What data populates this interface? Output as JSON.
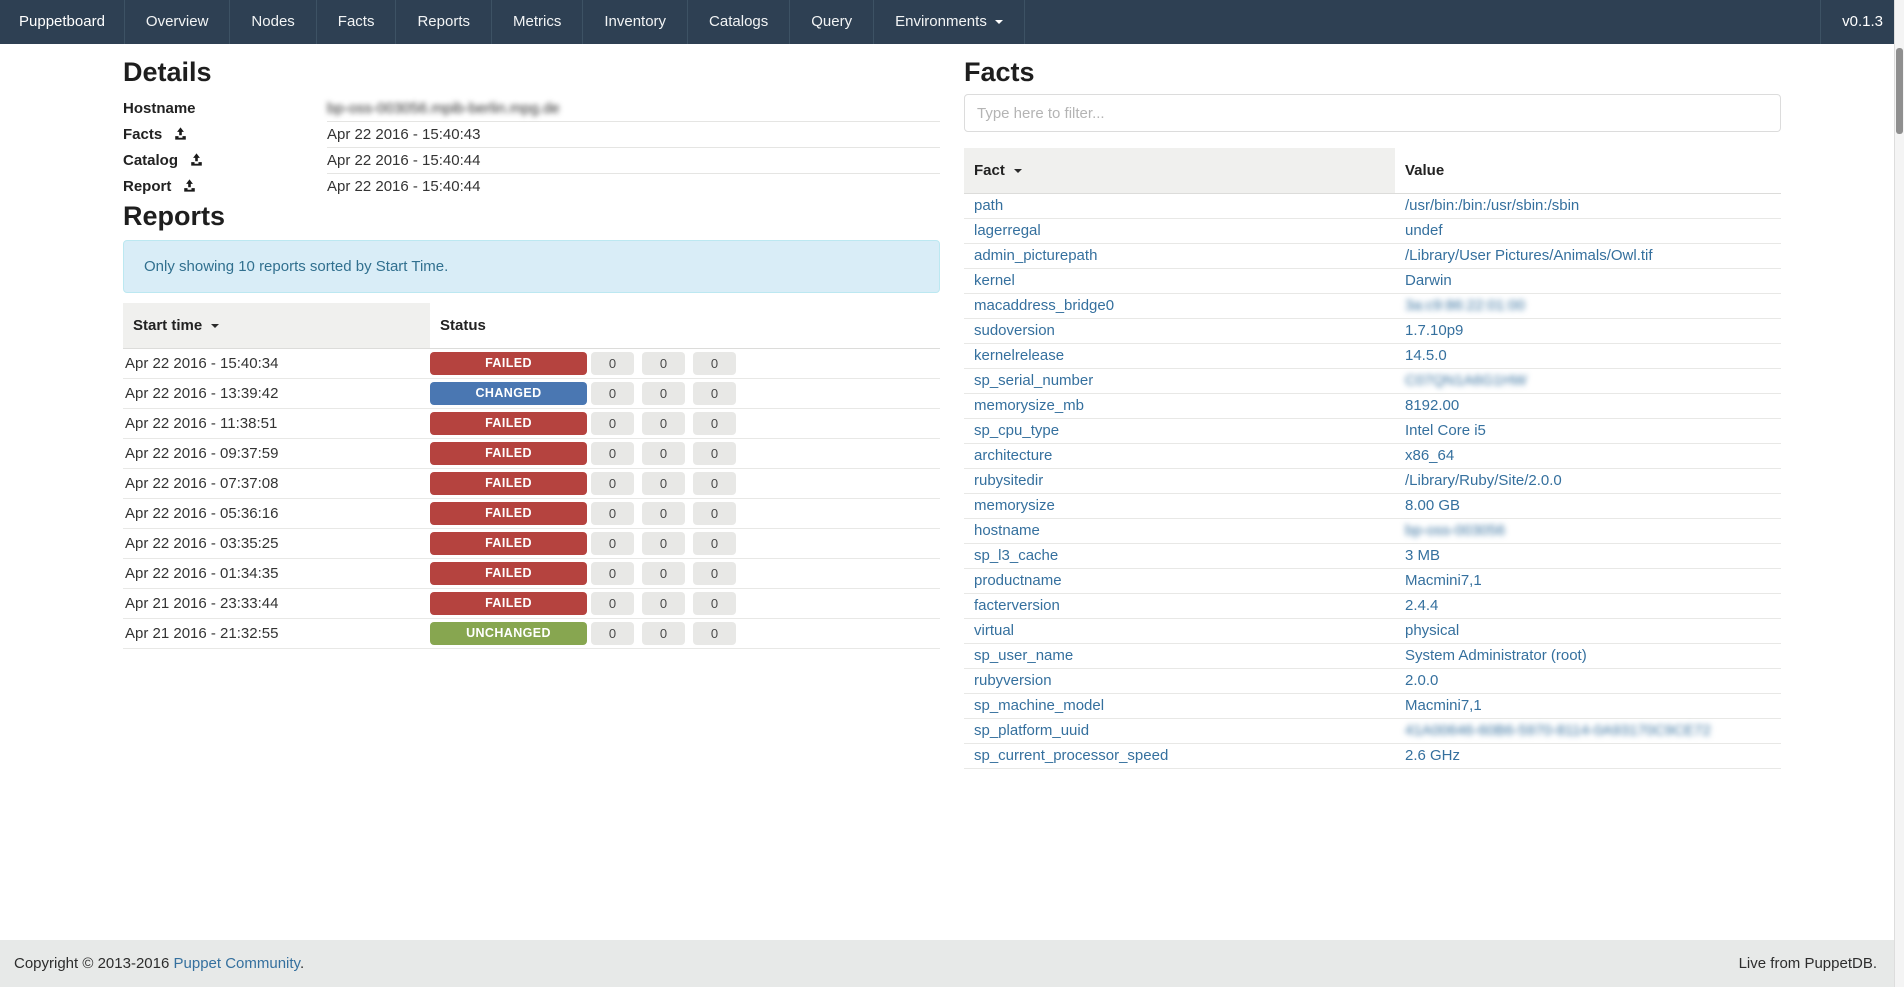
{
  "navbar": {
    "brand": "Puppetboard",
    "items": [
      {
        "label": "Overview"
      },
      {
        "label": "Nodes"
      },
      {
        "label": "Facts"
      },
      {
        "label": "Reports"
      },
      {
        "label": "Metrics"
      },
      {
        "label": "Inventory"
      },
      {
        "label": "Catalogs"
      },
      {
        "label": "Query"
      },
      {
        "label": "Environments",
        "dropdown": true
      }
    ],
    "version": "v0.1.3"
  },
  "details": {
    "heading": "Details",
    "rows": [
      {
        "label": "Hostname",
        "value": "bp-oss-003056.mpib-berlin.mpg.de",
        "blurred": true
      },
      {
        "label": "Facts",
        "icon": "upload-icon",
        "value": "Apr 22 2016 - 15:40:43"
      },
      {
        "label": "Catalog",
        "icon": "upload-icon",
        "value": "Apr 22 2016 - 15:40:44"
      },
      {
        "label": "Report",
        "icon": "upload-icon",
        "value": "Apr 22 2016 - 15:40:44"
      }
    ]
  },
  "reports": {
    "heading": "Reports",
    "alert": "Only showing 10 reports sorted by Start Time.",
    "columns": [
      "Start time",
      "Status"
    ],
    "sorted_column": "Start time",
    "status_colors": {
      "FAILED": "#b5433f",
      "CHANGED": "#4a77b2",
      "UNCHANGED": "#87a650"
    },
    "rows": [
      {
        "start_time": "Apr 22 2016 - 15:40:34",
        "status": "FAILED",
        "counts": [
          0,
          0,
          0
        ]
      },
      {
        "start_time": "Apr 22 2016 - 13:39:42",
        "status": "CHANGED",
        "counts": [
          0,
          0,
          0
        ]
      },
      {
        "start_time": "Apr 22 2016 - 11:38:51",
        "status": "FAILED",
        "counts": [
          0,
          0,
          0
        ]
      },
      {
        "start_time": "Apr 22 2016 - 09:37:59",
        "status": "FAILED",
        "counts": [
          0,
          0,
          0
        ]
      },
      {
        "start_time": "Apr 22 2016 - 07:37:08",
        "status": "FAILED",
        "counts": [
          0,
          0,
          0
        ]
      },
      {
        "start_time": "Apr 22 2016 - 05:36:16",
        "status": "FAILED",
        "counts": [
          0,
          0,
          0
        ]
      },
      {
        "start_time": "Apr 22 2016 - 03:35:25",
        "status": "FAILED",
        "counts": [
          0,
          0,
          0
        ]
      },
      {
        "start_time": "Apr 22 2016 - 01:34:35",
        "status": "FAILED",
        "counts": [
          0,
          0,
          0
        ]
      },
      {
        "start_time": "Apr 21 2016 - 23:33:44",
        "status": "FAILED",
        "counts": [
          0,
          0,
          0
        ]
      },
      {
        "start_time": "Apr 21 2016 - 21:32:55",
        "status": "UNCHANGED",
        "counts": [
          0,
          0,
          0
        ]
      }
    ]
  },
  "facts": {
    "heading": "Facts",
    "filter_placeholder": "Type here to filter...",
    "columns": [
      "Fact",
      "Value"
    ],
    "sorted_column": "Fact",
    "rows": [
      {
        "fact": "path",
        "value": "/usr/bin:/bin:/usr/sbin:/sbin"
      },
      {
        "fact": "lagerregal",
        "value": "undef"
      },
      {
        "fact": "admin_picturepath",
        "value": "/Library/User Pictures/Animals/Owl.tif"
      },
      {
        "fact": "kernel",
        "value": "Darwin"
      },
      {
        "fact": "macaddress_bridge0",
        "value": "3a:c9:86:22:01:00",
        "blurred": true
      },
      {
        "fact": "sudoversion",
        "value": "1.7.10p9"
      },
      {
        "fact": "kernelrelease",
        "value": "14.5.0"
      },
      {
        "fact": "sp_serial_number",
        "value": "C07QN1A6G1HW",
        "blurred": true
      },
      {
        "fact": "memorysize_mb",
        "value": "8192.00"
      },
      {
        "fact": "sp_cpu_type",
        "value": "Intel Core i5"
      },
      {
        "fact": "architecture",
        "value": "x86_64"
      },
      {
        "fact": "rubysitedir",
        "value": "/Library/Ruby/Site/2.0.0"
      },
      {
        "fact": "memorysize",
        "value": "8.00 GB"
      },
      {
        "fact": "hostname",
        "value": "bp-oss-003056",
        "blurred": true
      },
      {
        "fact": "sp_l3_cache",
        "value": "3 MB"
      },
      {
        "fact": "productname",
        "value": "Macmini7,1"
      },
      {
        "fact": "facterversion",
        "value": "2.4.4"
      },
      {
        "fact": "virtual",
        "value": "physical"
      },
      {
        "fact": "sp_user_name",
        "value": "System Administrator (root)"
      },
      {
        "fact": "rubyversion",
        "value": "2.0.0"
      },
      {
        "fact": "sp_machine_model",
        "value": "Macmini7,1"
      },
      {
        "fact": "sp_platform_uuid",
        "value": "41A00646-60B6-5970-8114-0A93170C9CE72",
        "blurred": true
      },
      {
        "fact": "sp_current_processor_speed",
        "value": "2.6 GHz"
      }
    ]
  },
  "footer": {
    "copyright_prefix": "Copyright © 2013-2016 ",
    "copyright_link": "Puppet Community",
    "copyright_suffix": ".",
    "right_text": "Live from PuppetDB."
  },
  "colors": {
    "navbar_bg": "#2e4053",
    "link_blue": "#35709e",
    "alert_bg": "#d9edf7",
    "alert_text": "#31708f"
  }
}
